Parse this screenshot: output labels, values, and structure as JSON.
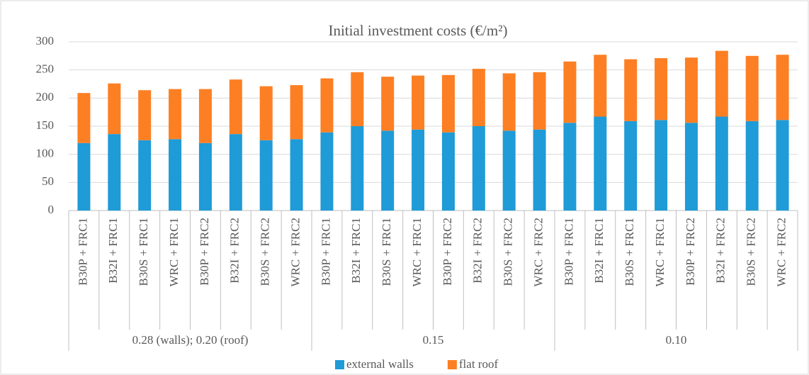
{
  "chart_data": {
    "type": "stacked_bar",
    "title": "Initial investment costs (€/m²)",
    "category_groups": [
      {
        "name": "0.28 (walls); 0.20 (roof)",
        "categories": [
          "B30P + FRC1",
          "B32I + FRC1",
          "B30S + FRC1",
          "WRC + FRC1",
          "B30P + FRC2",
          "B32I + FRC2",
          "B30S + FRC2",
          "WRC + FRC2"
        ]
      },
      {
        "name": "0.15",
        "categories": [
          "B30P + FRC1",
          "B32I + FRC1",
          "B30S + FRC1",
          "WRC + FRC1",
          "B30P + FRC2",
          "B32I + FRC2",
          "B30S + FRC2",
          "WRC + FRC2"
        ]
      },
      {
        "name": "0.10",
        "categories": [
          "B30P + FRC1",
          "B32I + FRC1",
          "B30S + FRC1",
          "WRC + FRC1",
          "B30P + FRC2",
          "B32I + FRC2",
          "B30S + FRC2",
          "WRC + FRC2"
        ]
      }
    ],
    "series": [
      {
        "name": "external walls",
        "color": "#1f9bd7",
        "values": [
          120,
          136,
          125,
          127,
          120,
          136,
          125,
          127,
          139,
          150,
          142,
          144,
          139,
          150,
          142,
          144,
          156,
          167,
          159,
          161,
          156,
          167,
          159,
          161
        ]
      },
      {
        "name": "flat roof",
        "color": "#fd7f23",
        "values": [
          89,
          90,
          89,
          89,
          96,
          97,
          96,
          96,
          96,
          96,
          96,
          96,
          102,
          102,
          102,
          102,
          109,
          110,
          110,
          110,
          116,
          117,
          116,
          116
        ]
      }
    ],
    "ylim": [
      0,
      300
    ],
    "yticks": [
      0,
      50,
      100,
      150,
      200,
      250,
      300
    ],
    "grid": true,
    "legend": "bottom"
  }
}
